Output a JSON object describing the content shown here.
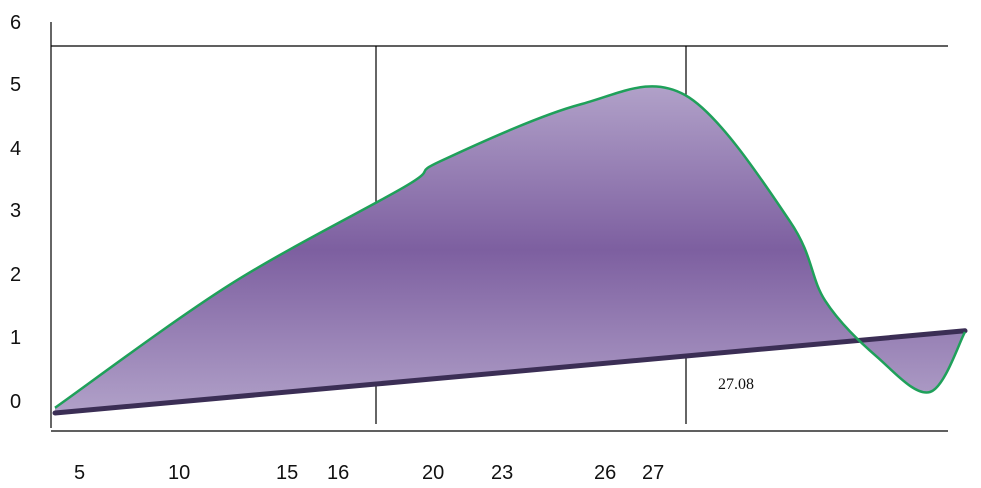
{
  "chart_data": {
    "type": "area",
    "y_ticks": [
      "0",
      "1",
      "2",
      "3",
      "4",
      "5",
      "6"
    ],
    "x_ticks": [
      "5",
      "10",
      "15",
      "16",
      "20",
      "23",
      "26",
      "27"
    ],
    "annotation": "27.08",
    "grid": false,
    "upper_curve": {
      "x": [
        5,
        10,
        15,
        16,
        20,
        23,
        26,
        27,
        28.5,
        30,
        31
      ],
      "y": [
        0.05,
        2.0,
        3.55,
        3.95,
        4.85,
        5.0,
        3.0,
        1.75,
        0.85,
        0.3,
        1.25
      ]
    },
    "lower_line": {
      "x": [
        5,
        31
      ],
      "y": [
        0.0,
        1.3
      ]
    },
    "colors": {
      "fill_light": "#b0a0c8",
      "fill_dark": "#7d5fa0",
      "outline": "#1fa05a",
      "base_line": "#3b2e55",
      "axis": "#000000"
    }
  }
}
